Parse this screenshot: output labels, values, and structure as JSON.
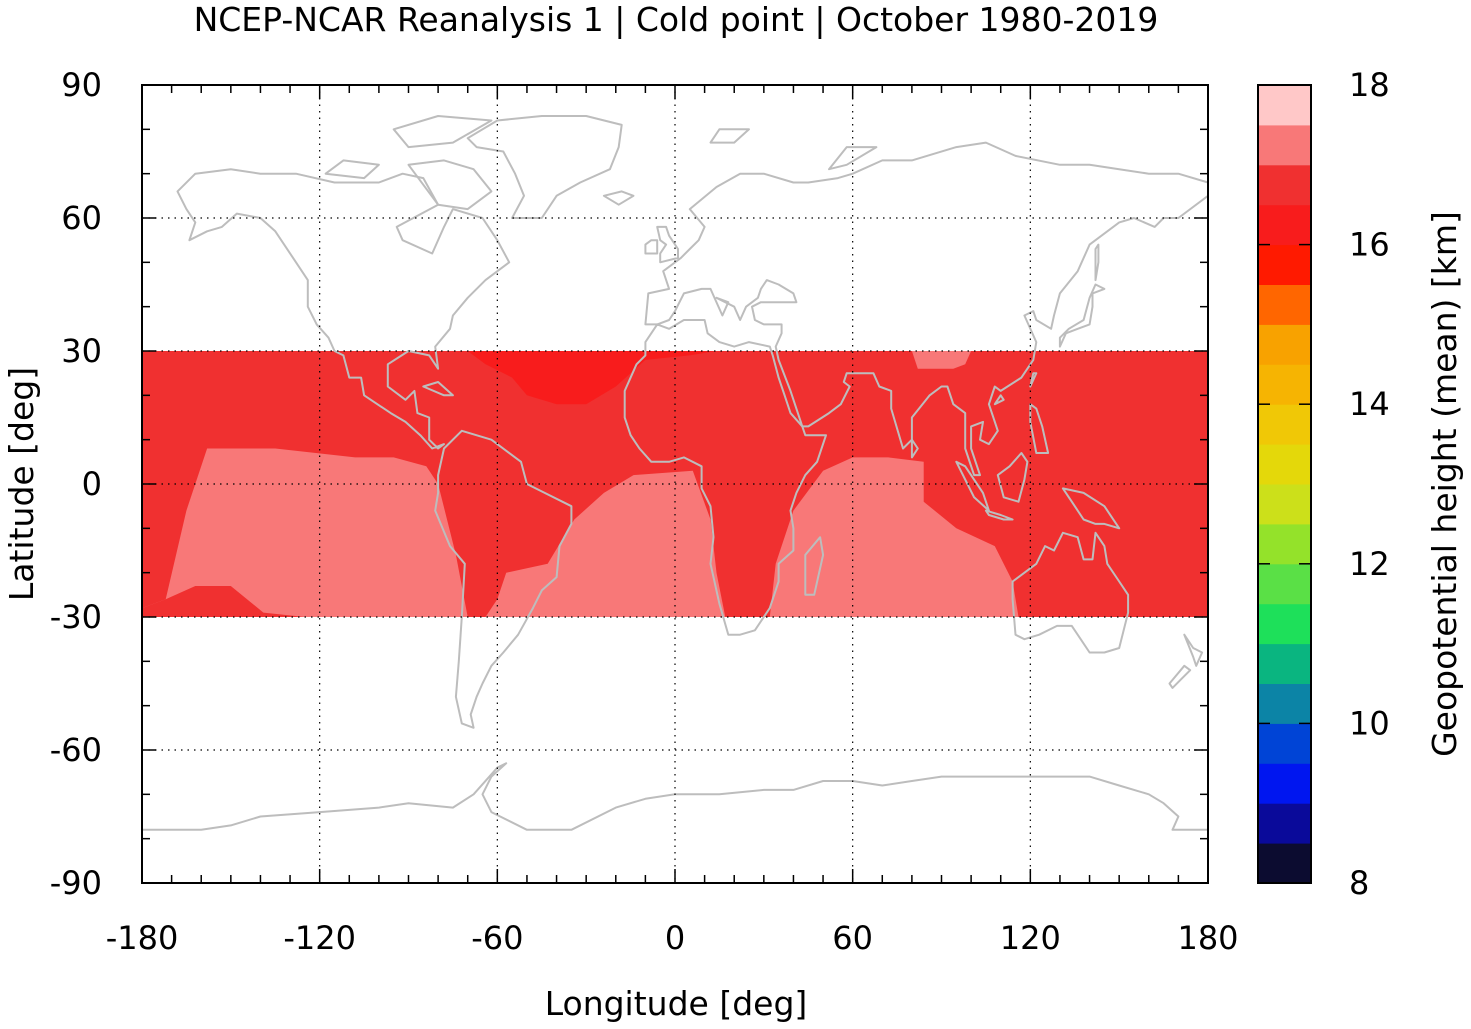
{
  "chart_data": {
    "type": "heatmap",
    "title": "NCEP-NCAR Reanalysis 1 | Cold point | October 1980-2019",
    "xlabel": "Longitude [deg]",
    "ylabel": "Latitude [deg]",
    "colorbar_label": "Geopotential height (mean) [km]",
    "xlim": [
      -180,
      180
    ],
    "ylim": [
      -90,
      90
    ],
    "x_ticks": [
      -180,
      -120,
      -60,
      0,
      60,
      120,
      180
    ],
    "x_tick_labels": [
      "-180",
      "-120",
      "-60",
      "0",
      "60",
      "120",
      "180"
    ],
    "y_ticks": [
      90,
      60,
      30,
      0,
      -30,
      -60,
      -90
    ],
    "y_tick_labels": [
      "90",
      "60",
      "30",
      "0",
      "-30",
      "-60",
      "-90"
    ],
    "grid": true,
    "colorbar": {
      "min": 8,
      "max": 18,
      "ticks": [
        8,
        10,
        12,
        14,
        16,
        18
      ],
      "tick_labels": [
        "8",
        "10",
        "12",
        "14",
        "16",
        "18"
      ],
      "colors": [
        "#0c0c30",
        "#0a0a9a",
        "#0016f0",
        "#0044d6",
        "#0c84a6",
        "#0ab580",
        "#1ee05a",
        "#5ae046",
        "#94e22a",
        "#cce01a",
        "#e4d80a",
        "#f0c806",
        "#f6b402",
        "#f8a200",
        "#ff6600",
        "#ff1a00",
        "#f81c1c",
        "#f03030",
        "#f87878",
        "#ffc8c8"
      ]
    },
    "data_region": {
      "lat_min": -30,
      "lat_max": 30
    },
    "regions": [
      {
        "name": "band",
        "value": 16.6
      },
      {
        "name": "south_pacific",
        "value": 17.2
      },
      {
        "name": "south_atlantic",
        "value": 17.2
      },
      {
        "name": "indian_ocean",
        "value": 17.2
      },
      {
        "name": "tibet",
        "value": 17.2
      },
      {
        "name": "atlantic_max",
        "value": 16.3
      },
      {
        "name": "sw_pacific_low",
        "value": 16.6
      }
    ],
    "overlay": "coastlines"
  }
}
